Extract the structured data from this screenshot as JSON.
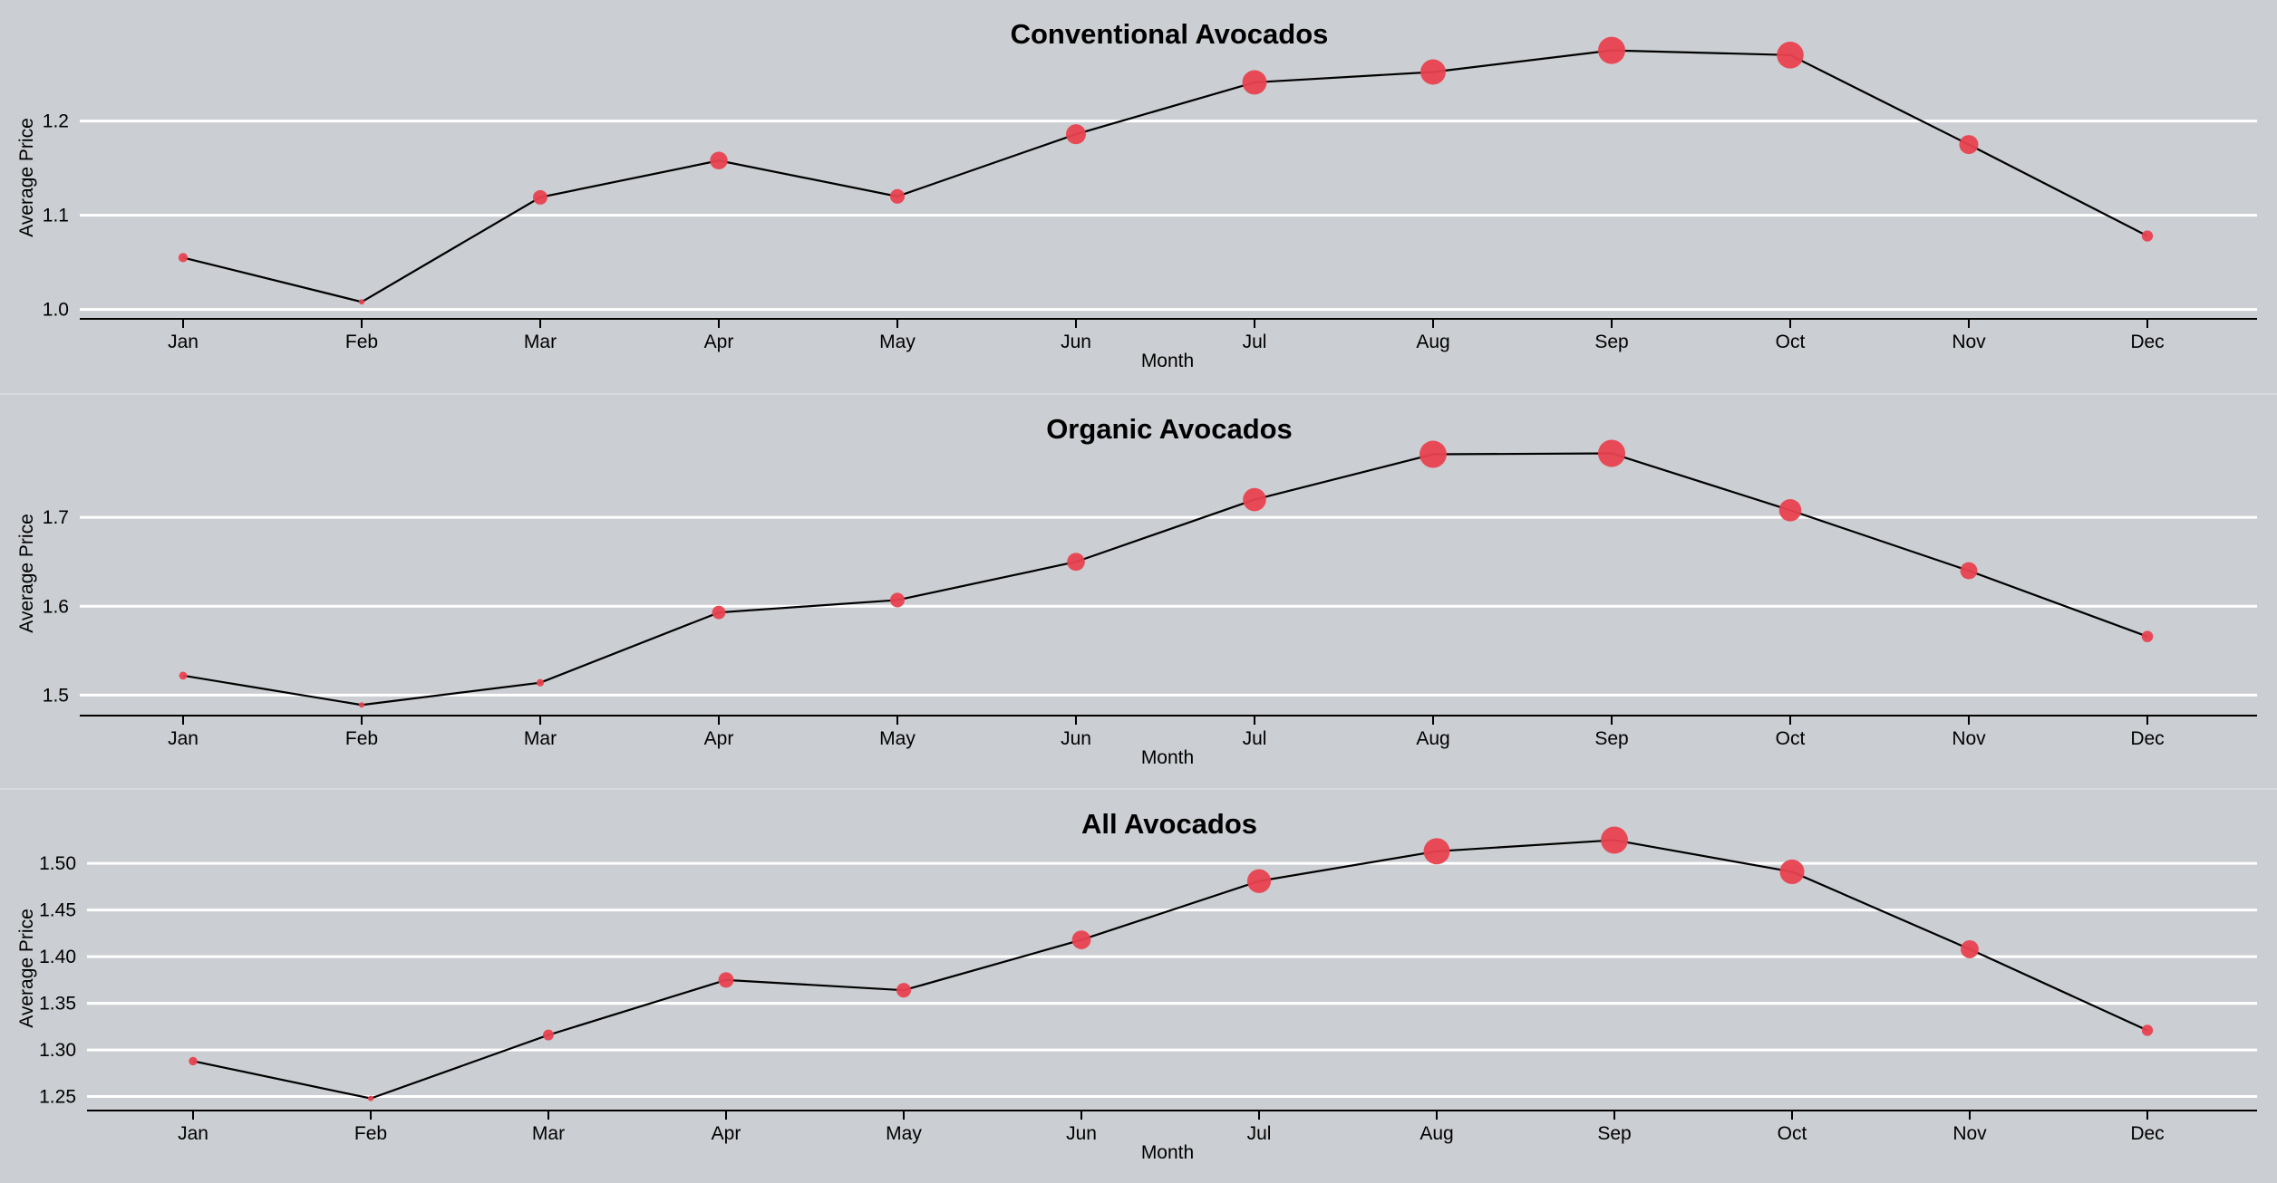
{
  "chart_data": [
    {
      "type": "line",
      "title": "Conventional Avocados",
      "xlabel": "Month",
      "ylabel": "Average Price",
      "categories": [
        "Jan",
        "Feb",
        "Mar",
        "Apr",
        "May",
        "Jun",
        "Jul",
        "Aug",
        "Sep",
        "Oct",
        "Nov",
        "Dec"
      ],
      "values": [
        1.055,
        1.008,
        1.119,
        1.158,
        1.12,
        1.186,
        1.241,
        1.252,
        1.275,
        1.27,
        1.175,
        1.078
      ],
      "yticks": [
        "1.0",
        "1.1",
        "1.2"
      ],
      "ylim": [
        0.99,
        1.29
      ],
      "grid": true,
      "point_size": "varies with value"
    },
    {
      "type": "line",
      "title": "Organic Avocados",
      "xlabel": "Month",
      "ylabel": "Average Price",
      "categories": [
        "Jan",
        "Feb",
        "Mar",
        "Apr",
        "May",
        "Jun",
        "Jul",
        "Aug",
        "Sep",
        "Oct",
        "Nov",
        "Dec"
      ],
      "values": [
        1.522,
        1.489,
        1.514,
        1.593,
        1.607,
        1.65,
        1.72,
        1.771,
        1.772,
        1.708,
        1.64,
        1.566
      ],
      "yticks": [
        "1.5",
        "1.6",
        "1.7"
      ],
      "ylim": [
        1.477,
        1.797
      ],
      "grid": true,
      "point_size": "varies with value"
    },
    {
      "type": "line",
      "title": "All Avocados",
      "xlabel": "Month",
      "ylabel": "Average Price",
      "categories": [
        "Jan",
        "Feb",
        "Mar",
        "Apr",
        "May",
        "Jun",
        "Jul",
        "Aug",
        "Sep",
        "Oct",
        "Nov",
        "Dec"
      ],
      "values": [
        1.288,
        1.248,
        1.316,
        1.375,
        1.364,
        1.418,
        1.481,
        1.513,
        1.525,
        1.491,
        1.408,
        1.321
      ],
      "yticks": [
        "1.25",
        "1.30",
        "1.35",
        "1.40",
        "1.45",
        "1.50"
      ],
      "ylim": [
        1.235,
        1.54
      ],
      "grid": true,
      "point_size": "varies with value"
    }
  ],
  "colors": {
    "background": "#cbced2",
    "grid": "#ffffff",
    "line": "#000000",
    "marker": "#e8424f"
  }
}
